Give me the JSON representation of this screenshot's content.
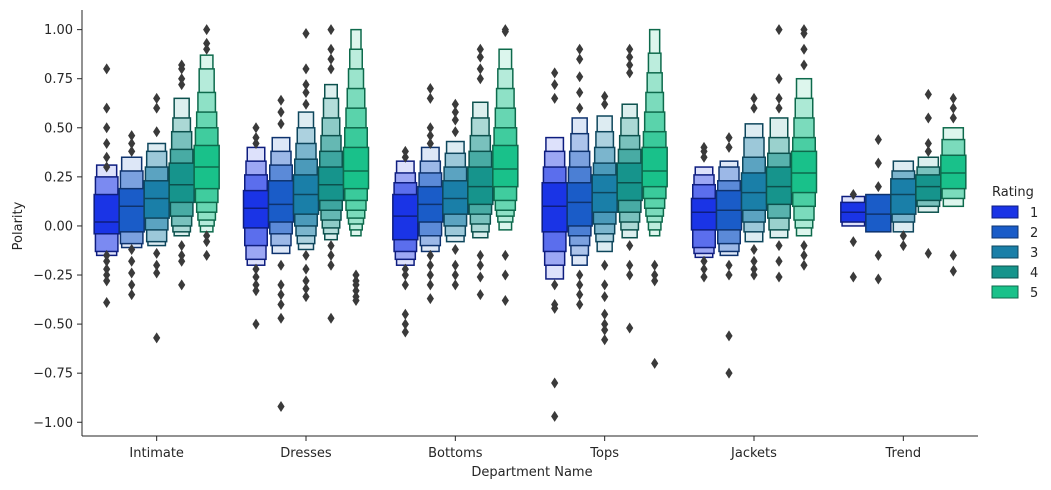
{
  "chart_data": {
    "type": "boxen",
    "xlabel": "Department Name",
    "ylabel": "Polarity",
    "ylim": [
      -1.07,
      1.1
    ],
    "yticks": [
      -1.0,
      -0.75,
      -0.5,
      -0.25,
      0.0,
      0.25,
      0.5,
      0.75,
      1.0
    ],
    "ytick_labels": [
      "−1.00",
      "−0.75",
      "−0.50",
      "−0.25",
      "0.00",
      "0.25",
      "0.50",
      "0.75",
      "1.00"
    ],
    "categories": [
      "Intimate",
      "Dresses",
      "Bottoms",
      "Tops",
      "Jackets",
      "Trend"
    ],
    "legend": {
      "title": "Rating",
      "placement": "right",
      "entries": [
        "1",
        "2",
        "3",
        "4",
        "5"
      ]
    },
    "colors": [
      "#1a34e6",
      "#1a5cc8",
      "#1a7fa8",
      "#16948c",
      "#19c18a"
    ],
    "outlier_color": "#3a3a3a",
    "series": [
      {
        "category": "Intimate",
        "rating": "1",
        "levels": [
          [
            -0.04,
            0.16
          ],
          [
            -0.13,
            0.25
          ],
          [
            -0.15,
            0.31
          ]
        ],
        "median": 0.02,
        "outliers": [
          0.8,
          0.6,
          0.5,
          0.42,
          0.35,
          0.3,
          -0.15,
          -0.18,
          -0.22,
          -0.25,
          -0.28,
          -0.39
        ]
      },
      {
        "category": "Intimate",
        "rating": "2",
        "levels": [
          [
            -0.03,
            0.19
          ],
          [
            -0.09,
            0.28
          ],
          [
            -0.11,
            0.35
          ]
        ],
        "median": 0.1,
        "outliers": [
          0.46,
          0.42,
          0.38,
          -0.12,
          -0.18,
          -0.24,
          -0.3,
          -0.35
        ]
      },
      {
        "category": "Intimate",
        "rating": "3",
        "levels": [
          [
            0.04,
            0.23
          ],
          [
            -0.02,
            0.3
          ],
          [
            -0.08,
            0.38
          ],
          [
            -0.1,
            0.42
          ]
        ],
        "median": 0.14,
        "outliers": [
          0.65,
          0.6,
          0.48,
          -0.14,
          -0.2,
          -0.24,
          -0.57
        ]
      },
      {
        "category": "Intimate",
        "rating": "4",
        "levels": [
          [
            0.12,
            0.32
          ],
          [
            0.05,
            0.39
          ],
          [
            0.0,
            0.48
          ],
          [
            -0.03,
            0.55
          ],
          [
            -0.05,
            0.65
          ]
        ],
        "median": 0.21,
        "outliers": [
          0.82,
          0.8,
          0.75,
          0.72,
          -0.1,
          -0.15,
          -0.18,
          -0.3
        ]
      },
      {
        "category": "Intimate",
        "rating": "5",
        "levels": [
          [
            0.19,
            0.41
          ],
          [
            0.12,
            0.5
          ],
          [
            0.07,
            0.58
          ],
          [
            0.03,
            0.68
          ],
          [
            0.0,
            0.8
          ],
          [
            -0.03,
            0.87
          ]
        ],
        "median": 0.3,
        "outliers": [
          1.0,
          0.93,
          0.9,
          -0.05,
          -0.08,
          -0.15
        ]
      },
      {
        "category": "Dresses",
        "rating": "1",
        "levels": [
          [
            -0.01,
            0.18
          ],
          [
            -0.1,
            0.26
          ],
          [
            -0.17,
            0.33
          ],
          [
            -0.2,
            0.4
          ]
        ],
        "median": 0.09,
        "outliers": [
          0.5,
          0.45,
          0.42,
          -0.22,
          -0.26,
          -0.3,
          -0.33,
          -0.5
        ]
      },
      {
        "category": "Dresses",
        "rating": "2",
        "levels": [
          [
            0.02,
            0.23
          ],
          [
            -0.04,
            0.31
          ],
          [
            -0.1,
            0.38
          ],
          [
            -0.14,
            0.45
          ]
        ],
        "median": 0.11,
        "outliers": [
          0.64,
          0.58,
          0.52,
          -0.2,
          -0.3,
          -0.35,
          -0.4,
          -0.47,
          -0.92
        ]
      },
      {
        "category": "Dresses",
        "rating": "3",
        "levels": [
          [
            0.06,
            0.26
          ],
          [
            0.0,
            0.34
          ],
          [
            -0.05,
            0.42
          ],
          [
            -0.09,
            0.5
          ],
          [
            -0.12,
            0.58
          ]
        ],
        "median": 0.16,
        "outliers": [
          0.98,
          0.8,
          0.72,
          0.68,
          0.62,
          -0.15,
          -0.22,
          -0.28,
          -0.32,
          -0.36
        ]
      },
      {
        "category": "Dresses",
        "rating": "4",
        "levels": [
          [
            0.13,
            0.3
          ],
          [
            0.08,
            0.38
          ],
          [
            0.03,
            0.46
          ],
          [
            -0.01,
            0.55
          ],
          [
            -0.04,
            0.65
          ],
          [
            -0.07,
            0.72
          ]
        ],
        "median": 0.21,
        "outliers": [
          1.0,
          0.9,
          0.85,
          0.8,
          -0.1,
          -0.15,
          -0.2,
          -0.47
        ]
      },
      {
        "category": "Dresses",
        "rating": "5",
        "levels": [
          [
            0.19,
            0.4
          ],
          [
            0.13,
            0.5
          ],
          [
            0.08,
            0.6
          ],
          [
            0.04,
            0.7
          ],
          [
            0.01,
            0.8
          ],
          [
            -0.02,
            0.9
          ],
          [
            -0.05,
            1.0
          ]
        ],
        "median": 0.28,
        "outliers": [
          -0.25,
          -0.28,
          -0.3,
          -0.33,
          -0.36,
          -0.38
        ]
      },
      {
        "category": "Bottoms",
        "rating": "1",
        "levels": [
          [
            -0.07,
            0.16
          ],
          [
            -0.13,
            0.22
          ],
          [
            -0.17,
            0.27
          ],
          [
            -0.2,
            0.33
          ]
        ],
        "median": 0.05,
        "outliers": [
          0.38,
          0.35,
          -0.22,
          -0.25,
          -0.3,
          -0.45,
          -0.5,
          -0.54
        ]
      },
      {
        "category": "Bottoms",
        "rating": "2",
        "levels": [
          [
            0.02,
            0.2
          ],
          [
            -0.05,
            0.27
          ],
          [
            -0.1,
            0.33
          ],
          [
            -0.13,
            0.4
          ]
        ],
        "median": 0.11,
        "outliers": [
          0.7,
          0.65,
          0.5,
          0.46,
          0.42,
          -0.15,
          -0.2,
          -0.25,
          -0.3,
          -0.37
        ]
      },
      {
        "category": "Bottoms",
        "rating": "3",
        "levels": [
          [
            0.06,
            0.23
          ],
          [
            0.0,
            0.3
          ],
          [
            -0.05,
            0.37
          ],
          [
            -0.08,
            0.43
          ]
        ],
        "median": 0.14,
        "outliers": [
          0.62,
          0.58,
          0.54,
          0.48,
          -0.12,
          -0.2,
          -0.25,
          -0.3
        ]
      },
      {
        "category": "Bottoms",
        "rating": "4",
        "levels": [
          [
            0.11,
            0.3
          ],
          [
            0.06,
            0.38
          ],
          [
            0.01,
            0.46
          ],
          [
            -0.03,
            0.55
          ],
          [
            -0.06,
            0.63
          ]
        ],
        "median": 0.2,
        "outliers": [
          0.9,
          0.86,
          0.8,
          0.75,
          -0.15,
          -0.2,
          -0.26,
          -0.35
        ]
      },
      {
        "category": "Bottoms",
        "rating": "5",
        "levels": [
          [
            0.2,
            0.41
          ],
          [
            0.13,
            0.5
          ],
          [
            0.08,
            0.6
          ],
          [
            0.05,
            0.7
          ],
          [
            0.02,
            0.8
          ],
          [
            -0.02,
            0.9
          ]
        ],
        "median": 0.29,
        "outliers": [
          1.0,
          0.99,
          -0.15,
          -0.25,
          -0.38
        ]
      },
      {
        "category": "Tops",
        "rating": "1",
        "levels": [
          [
            -0.03,
            0.22
          ],
          [
            -0.13,
            0.3
          ],
          [
            -0.2,
            0.38
          ],
          [
            -0.27,
            0.45
          ]
        ],
        "median": 0.1,
        "outliers": [
          0.78,
          0.72,
          0.65,
          -0.3,
          -0.4,
          -0.42,
          -0.8,
          -0.97
        ]
      },
      {
        "category": "Tops",
        "rating": "2",
        "levels": [
          [
            0.0,
            0.22
          ],
          [
            -0.05,
            0.3
          ],
          [
            -0.1,
            0.38
          ],
          [
            -0.15,
            0.47
          ],
          [
            -0.2,
            0.55
          ]
        ],
        "median": 0.12,
        "outliers": [
          0.9,
          0.85,
          0.76,
          0.68,
          0.6,
          -0.25,
          -0.3,
          -0.35,
          -0.4
        ]
      },
      {
        "category": "Tops",
        "rating": "3",
        "levels": [
          [
            0.07,
            0.26
          ],
          [
            0.01,
            0.32
          ],
          [
            -0.04,
            0.4
          ],
          [
            -0.08,
            0.48
          ],
          [
            -0.13,
            0.56
          ]
        ],
        "median": 0.17,
        "outliers": [
          0.66,
          0.62,
          -0.2,
          -0.3,
          -0.36,
          -0.45,
          -0.5,
          -0.53,
          -0.58
        ]
      },
      {
        "category": "Tops",
        "rating": "4",
        "levels": [
          [
            0.13,
            0.32
          ],
          [
            0.07,
            0.39
          ],
          [
            0.02,
            0.46
          ],
          [
            -0.02,
            0.55
          ],
          [
            -0.06,
            0.62
          ]
        ],
        "median": 0.22,
        "outliers": [
          0.9,
          0.86,
          0.82,
          0.78,
          -0.1,
          -0.2,
          -0.25,
          -0.52
        ]
      },
      {
        "category": "Tops",
        "rating": "5",
        "levels": [
          [
            0.2,
            0.4
          ],
          [
            0.14,
            0.48
          ],
          [
            0.09,
            0.58
          ],
          [
            0.05,
            0.68
          ],
          [
            0.02,
            0.78
          ],
          [
            -0.02,
            0.88
          ],
          [
            -0.05,
            1.0
          ]
        ],
        "median": 0.28,
        "outliers": [
          -0.2,
          -0.25,
          -0.28,
          -0.7
        ]
      },
      {
        "category": "Jackets",
        "rating": "1",
        "levels": [
          [
            -0.02,
            0.14
          ],
          [
            -0.11,
            0.21
          ],
          [
            -0.14,
            0.26
          ],
          [
            -0.16,
            0.3
          ]
        ],
        "median": 0.07,
        "outliers": [
          0.4,
          0.38,
          0.35,
          -0.18,
          -0.22,
          -0.26
        ]
      },
      {
        "category": "Jackets",
        "rating": "2",
        "levels": [
          [
            -0.02,
            0.18
          ],
          [
            -0.09,
            0.23
          ],
          [
            -0.13,
            0.3
          ],
          [
            -0.15,
            0.33
          ]
        ],
        "median": 0.08,
        "outliers": [
          0.45,
          0.4,
          -0.2,
          -0.25,
          -0.56,
          -0.75
        ]
      },
      {
        "category": "Jackets",
        "rating": "3",
        "levels": [
          [
            0.08,
            0.27
          ],
          [
            0.02,
            0.35
          ],
          [
            -0.03,
            0.45
          ],
          [
            -0.08,
            0.52
          ]
        ],
        "median": 0.17,
        "outliers": [
          0.65,
          0.6,
          -0.12,
          -0.18,
          -0.22,
          -0.25
        ]
      },
      {
        "category": "Jackets",
        "rating": "4",
        "levels": [
          [
            0.11,
            0.3
          ],
          [
            0.04,
            0.37
          ],
          [
            -0.02,
            0.45
          ],
          [
            -0.06,
            0.55
          ]
        ],
        "median": 0.2,
        "outliers": [
          1.0,
          0.75,
          0.65,
          0.6,
          -0.1,
          -0.18,
          -0.26
        ]
      },
      {
        "category": "Jackets",
        "rating": "5",
        "levels": [
          [
            0.17,
            0.38
          ],
          [
            0.1,
            0.45
          ],
          [
            0.03,
            0.55
          ],
          [
            -0.01,
            0.65
          ],
          [
            -0.05,
            0.75
          ]
        ],
        "median": 0.27,
        "outliers": [
          1.0,
          0.98,
          0.9,
          0.82,
          -0.1,
          -0.15,
          -0.2
        ]
      },
      {
        "category": "Trend",
        "rating": "1",
        "levels": [
          [
            0.02,
            0.12
          ],
          [
            0.0,
            0.15
          ]
        ],
        "median": 0.07,
        "outliers": [
          0.16,
          -0.08,
          -0.26
        ]
      },
      {
        "category": "Trend",
        "rating": "2",
        "levels": [
          [
            -0.03,
            0.16
          ]
        ],
        "median": 0.06,
        "outliers": [
          0.44,
          0.32,
          0.2,
          -0.15,
          -0.27
        ]
      },
      {
        "category": "Trend",
        "rating": "3",
        "levels": [
          [
            0.06,
            0.24
          ],
          [
            0.02,
            0.28
          ],
          [
            -0.03,
            0.33
          ]
        ],
        "median": 0.16,
        "outliers": [
          -0.05,
          -0.1
        ]
      },
      {
        "category": "Trend",
        "rating": "4",
        "levels": [
          [
            0.13,
            0.26
          ],
          [
            0.1,
            0.3
          ],
          [
            0.07,
            0.35
          ]
        ],
        "median": 0.2,
        "outliers": [
          0.67,
          0.55,
          0.42,
          0.38,
          -0.14
        ]
      },
      {
        "category": "Trend",
        "rating": "5",
        "levels": [
          [
            0.19,
            0.36
          ],
          [
            0.14,
            0.44
          ],
          [
            0.1,
            0.5
          ]
        ],
        "median": 0.27,
        "outliers": [
          0.65,
          0.6,
          0.55,
          -0.15,
          -0.23
        ]
      }
    ]
  }
}
